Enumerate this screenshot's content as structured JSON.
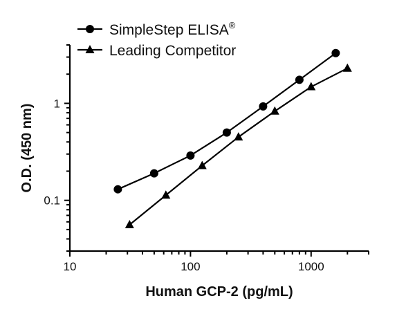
{
  "chart_data": {
    "type": "line",
    "xlabel": "Human GCP-2 (pg/mL)",
    "ylabel": "O.D. (450 nm)",
    "xscale": "log",
    "yscale": "log",
    "xlim": [
      10,
      3000
    ],
    "ylim": [
      0.03,
      4
    ],
    "x_ticks": [
      {
        "value": 10,
        "label": "10"
      },
      {
        "value": 100,
        "label": "100"
      },
      {
        "value": 1000,
        "label": "1000"
      }
    ],
    "y_ticks": [
      {
        "value": 0.1,
        "label": "0.1"
      },
      {
        "value": 1,
        "label": "1"
      }
    ],
    "legend_position": "top-left",
    "series": [
      {
        "name": "SimpleStep ELISA",
        "superscript": "®",
        "marker": "circle",
        "x": [
          25,
          50,
          100,
          200,
          400,
          800,
          1600
        ],
        "y": [
          0.13,
          0.19,
          0.29,
          0.5,
          0.93,
          1.75,
          3.3
        ]
      },
      {
        "name": "Leading Competitor",
        "marker": "triangle",
        "x": [
          31.25,
          62.5,
          125,
          250,
          500,
          1000,
          2000
        ],
        "y": [
          0.056,
          0.113,
          0.228,
          0.45,
          0.83,
          1.48,
          2.3
        ]
      }
    ]
  }
}
